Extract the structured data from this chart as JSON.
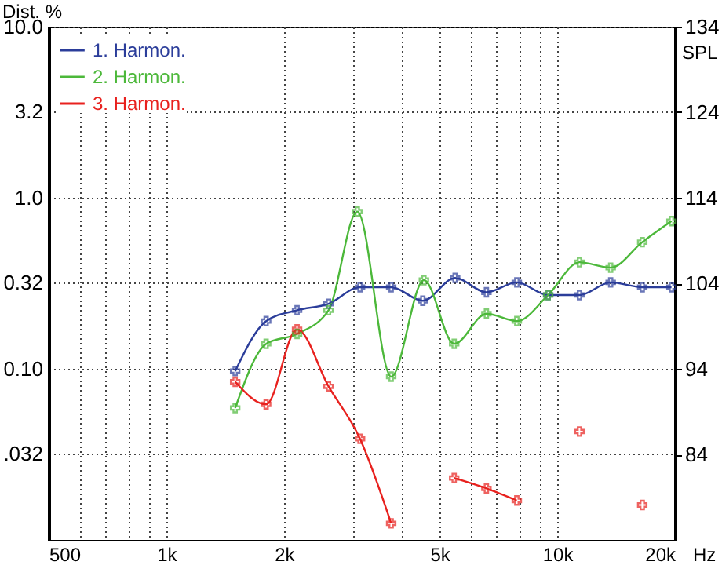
{
  "chart_data": {
    "type": "line",
    "ylabel": "Dist. %",
    "y2label": "SPL",
    "log": "xy",
    "xlim": [
      500,
      20000
    ],
    "xticks": [
      500,
      {
        "value": 600,
        "label": null
      },
      {
        "value": 700,
        "label": null
      },
      {
        "value": 800,
        "label": null
      },
      {
        "value": 900,
        "label": null
      },
      {
        "value": 1000,
        "label": "1k"
      },
      {
        "value": 2000,
        "label": "2k"
      },
      {
        "value": 3000,
        "label": null
      },
      {
        "value": 4000,
        "label": null
      },
      {
        "value": 5000,
        "label": "5k"
      },
      {
        "value": 6000,
        "label": null
      },
      {
        "value": 7000,
        "label": null
      },
      {
        "value": 8000,
        "label": null
      },
      {
        "value": 9000,
        "label": null
      },
      {
        "value": 10000,
        "label": "10k"
      },
      {
        "value": 20000,
        "label": "20k"
      }
    ],
    "xlabel": "Hz",
    "ylim": [
      0.01,
      10
    ],
    "yticks": [
      {
        "value": 0.032,
        "label": ".032"
      },
      {
        "value": 0.1,
        "label": "0.10"
      },
      0.32,
      {
        "value": 1,
        "label": "1.0"
      },
      3.2,
      {
        "value": 10,
        "label": "10.0"
      }
    ],
    "y2lim": [
      74,
      134
    ],
    "y2ticks": [
      84,
      94,
      104,
      114,
      124,
      134
    ],
    "grid": true,
    "legend": "top left",
    "marker": "cross",
    "series": [
      {
        "name": "1. Harmon.",
        "color": "#2b3d9a",
        "x": [
          1500,
          1800,
          2160,
          2600,
          3130,
          3760,
          4530,
          5480,
          6590,
          7880,
          9480,
          11400,
          13700,
          16500,
          19600
        ],
        "values": [
          0.097,
          0.19,
          0.22,
          0.24,
          0.3,
          0.3,
          0.25,
          0.34,
          0.28,
          0.32,
          0.27,
          0.27,
          0.32,
          0.3,
          0.3
        ]
      },
      {
        "name": "2. Harmon.",
        "color": "#4cb83a",
        "x": [
          1500,
          1800,
          2160,
          2600,
          3080,
          3760,
          4560,
          5450,
          6590,
          7880,
          9480,
          11400,
          13700,
          16500,
          19600
        ],
        "values": [
          0.059,
          0.14,
          0.16,
          0.22,
          0.83,
          0.09,
          0.33,
          0.14,
          0.21,
          0.19,
          0.27,
          0.42,
          0.39,
          0.55,
          0.73
        ]
      },
      {
        "name": "3. Harmon.",
        "color": "#e8211e",
        "x": [
          1500,
          1800,
          2160,
          2600,
          3130,
          3760,
          4300,
          5450,
          6590,
          7880,
          9200,
          11400,
          14200,
          16500
        ],
        "values": [
          0.084,
          0.062,
          0.17,
          0.079,
          0.039,
          0.0125,
          null,
          0.023,
          0.02,
          0.017,
          null,
          0.043,
          null,
          0.016
        ]
      }
    ]
  }
}
